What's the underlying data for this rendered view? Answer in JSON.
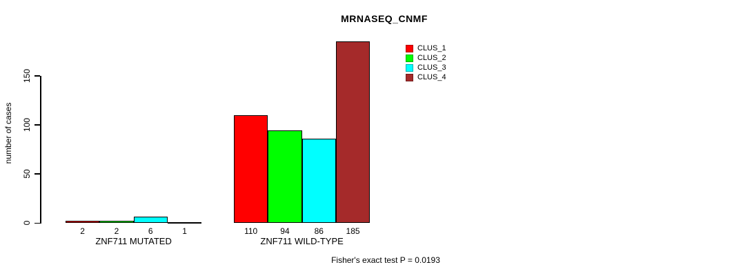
{
  "title": "MRNASEQ_CNMF",
  "footnote": "Fisher's exact test P = 0.0193",
  "chart_data": {
    "type": "bar",
    "title": "MRNASEQ_CNMF",
    "ylabel": "number of cases",
    "xlabel": "",
    "annotation": "Fisher's exact test P = 0.0193",
    "categories": [
      "ZNF711 MUTATED",
      "ZNF711 WILD-TYPE"
    ],
    "series": [
      {
        "name": "CLUS_1",
        "color": "#FF0000",
        "values": [
          2,
          110
        ]
      },
      {
        "name": "CLUS_2",
        "color": "#00FF00",
        "values": [
          2,
          94
        ]
      },
      {
        "name": "CLUS_3",
        "color": "#00FFFF",
        "values": [
          6,
          86
        ]
      },
      {
        "name": "CLUS_4",
        "color": "#A52A2A",
        "values": [
          1,
          185
        ]
      }
    ],
    "yticks": [
      0,
      50,
      100,
      150
    ],
    "ylim": [
      0,
      185
    ],
    "grid": false,
    "bar_value_labels_shown": true,
    "legend_position": "top-right",
    "legend": [
      {
        "label": "CLUS_1",
        "color": "#FF0000"
      },
      {
        "label": "CLUS_2",
        "color": "#00FF00"
      },
      {
        "label": "CLUS_3",
        "color": "#00FFFF"
      },
      {
        "label": "CLUS_4",
        "color": "#A52A2A"
      }
    ]
  }
}
